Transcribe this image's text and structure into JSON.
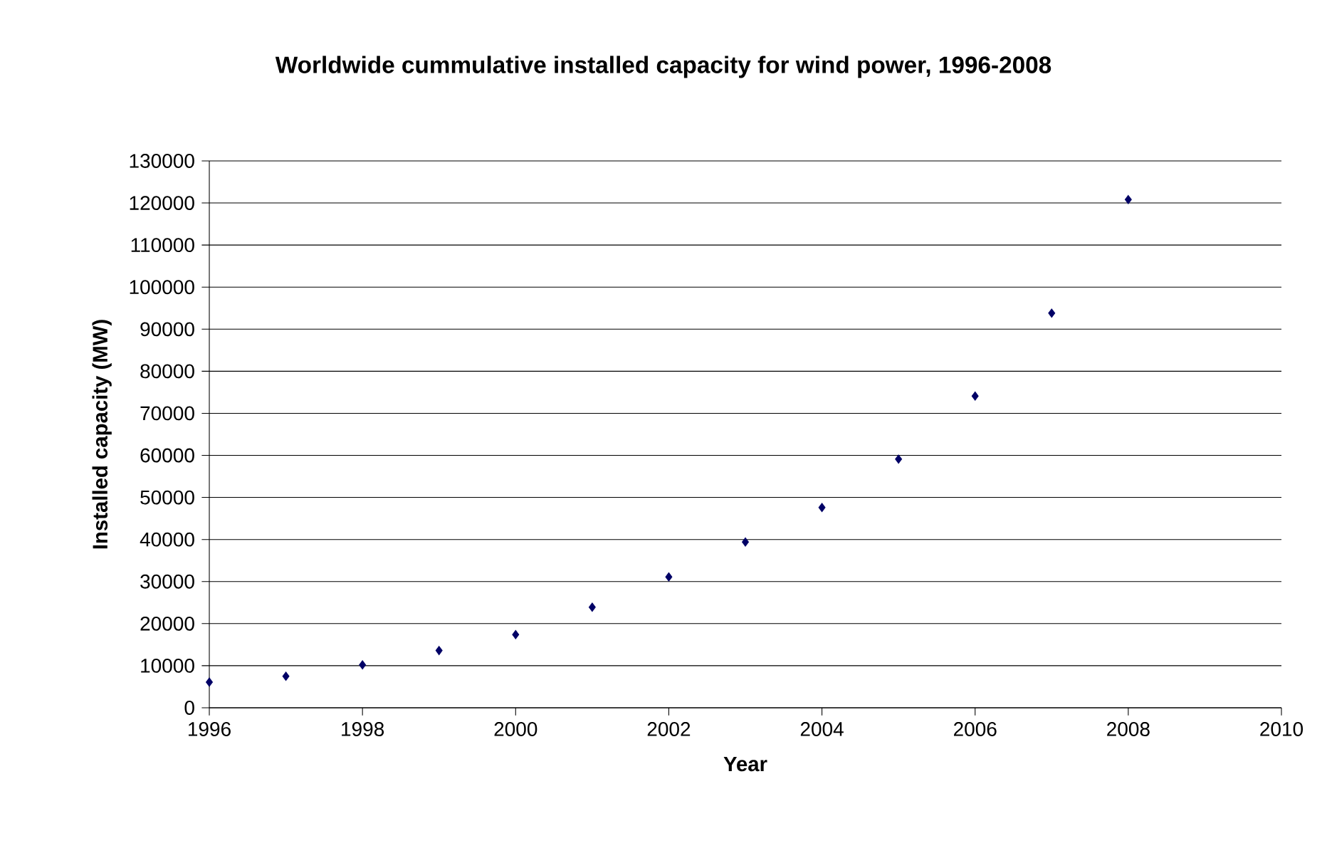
{
  "chart_data": {
    "type": "scatter",
    "title": "Worldwide cummulative installed capacity for wind power, 1996-2008",
    "xlabel": "Year",
    "ylabel": "Installed capacity (MW)",
    "x": [
      1996,
      1997,
      1998,
      1999,
      2000,
      2001,
      2002,
      2003,
      2004,
      2005,
      2006,
      2007,
      2008
    ],
    "values": [
      6100,
      7500,
      10200,
      13600,
      17400,
      23900,
      31100,
      39400,
      47600,
      59100,
      74100,
      93800,
      120800
    ],
    "color": "#000066",
    "marker": "diamond",
    "grid": "y",
    "xlim": [
      1996,
      2010
    ],
    "xticks": [
      1996,
      1998,
      2000,
      2002,
      2004,
      2006,
      2008,
      2010
    ],
    "ylim": [
      0,
      130000
    ],
    "yticks": [
      0,
      10000,
      20000,
      30000,
      40000,
      50000,
      60000,
      70000,
      80000,
      90000,
      100000,
      110000,
      120000,
      130000
    ]
  }
}
